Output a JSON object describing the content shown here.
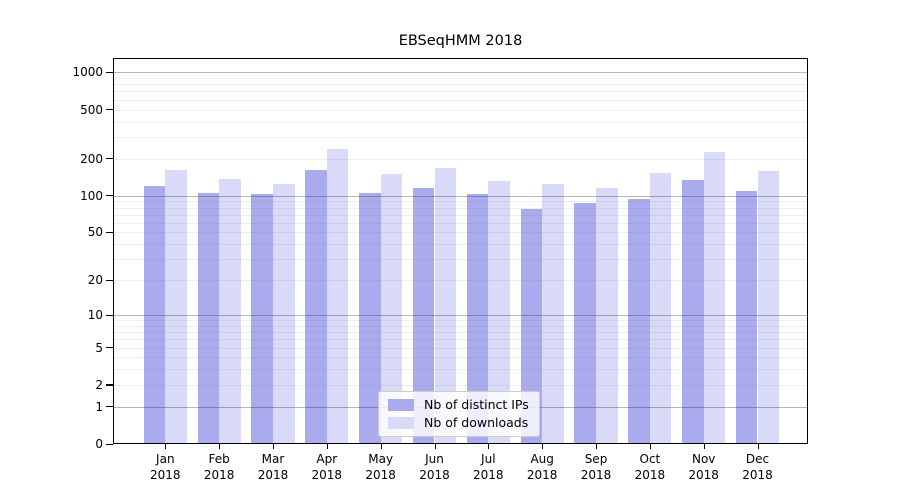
{
  "chart_data": {
    "type": "bar",
    "title": "EBSeqHMM 2018",
    "categories": [
      "Jan",
      "Feb",
      "Mar",
      "Apr",
      "May",
      "Jun",
      "Jul",
      "Aug",
      "Sep",
      "Oct",
      "Nov",
      "Dec"
    ],
    "category_year_label": "2018",
    "series": [
      {
        "name": "Nb of distinct IPs",
        "color": "#aaaaee",
        "values": [
          119,
          105,
          103,
          163,
          106,
          116,
          103,
          78,
          87,
          94,
          134,
          109
        ]
      },
      {
        "name": "Nb of downloads",
        "color": "#d9d9f8",
        "values": [
          163,
          137,
          124,
          241,
          150,
          168,
          133,
          125,
          116,
          153,
          225,
          158
        ]
      }
    ],
    "y_ticks": [
      0,
      1,
      2,
      5,
      10,
      20,
      50,
      100,
      200,
      500,
      1000
    ],
    "y_scale": "log10(1+y)",
    "ylim": [
      0,
      1280
    ],
    "grid": true,
    "legend_position": "lower center",
    "colors": {
      "bar_distinct_ips": "#aaaaee",
      "bar_downloads": "#d9d9f8",
      "major_grid": "#b3b3b3",
      "minor_grid": "#ececec",
      "axis": "#000000",
      "text": "#000000",
      "legend_border": "#cccccc",
      "background": "#ffffff"
    }
  }
}
